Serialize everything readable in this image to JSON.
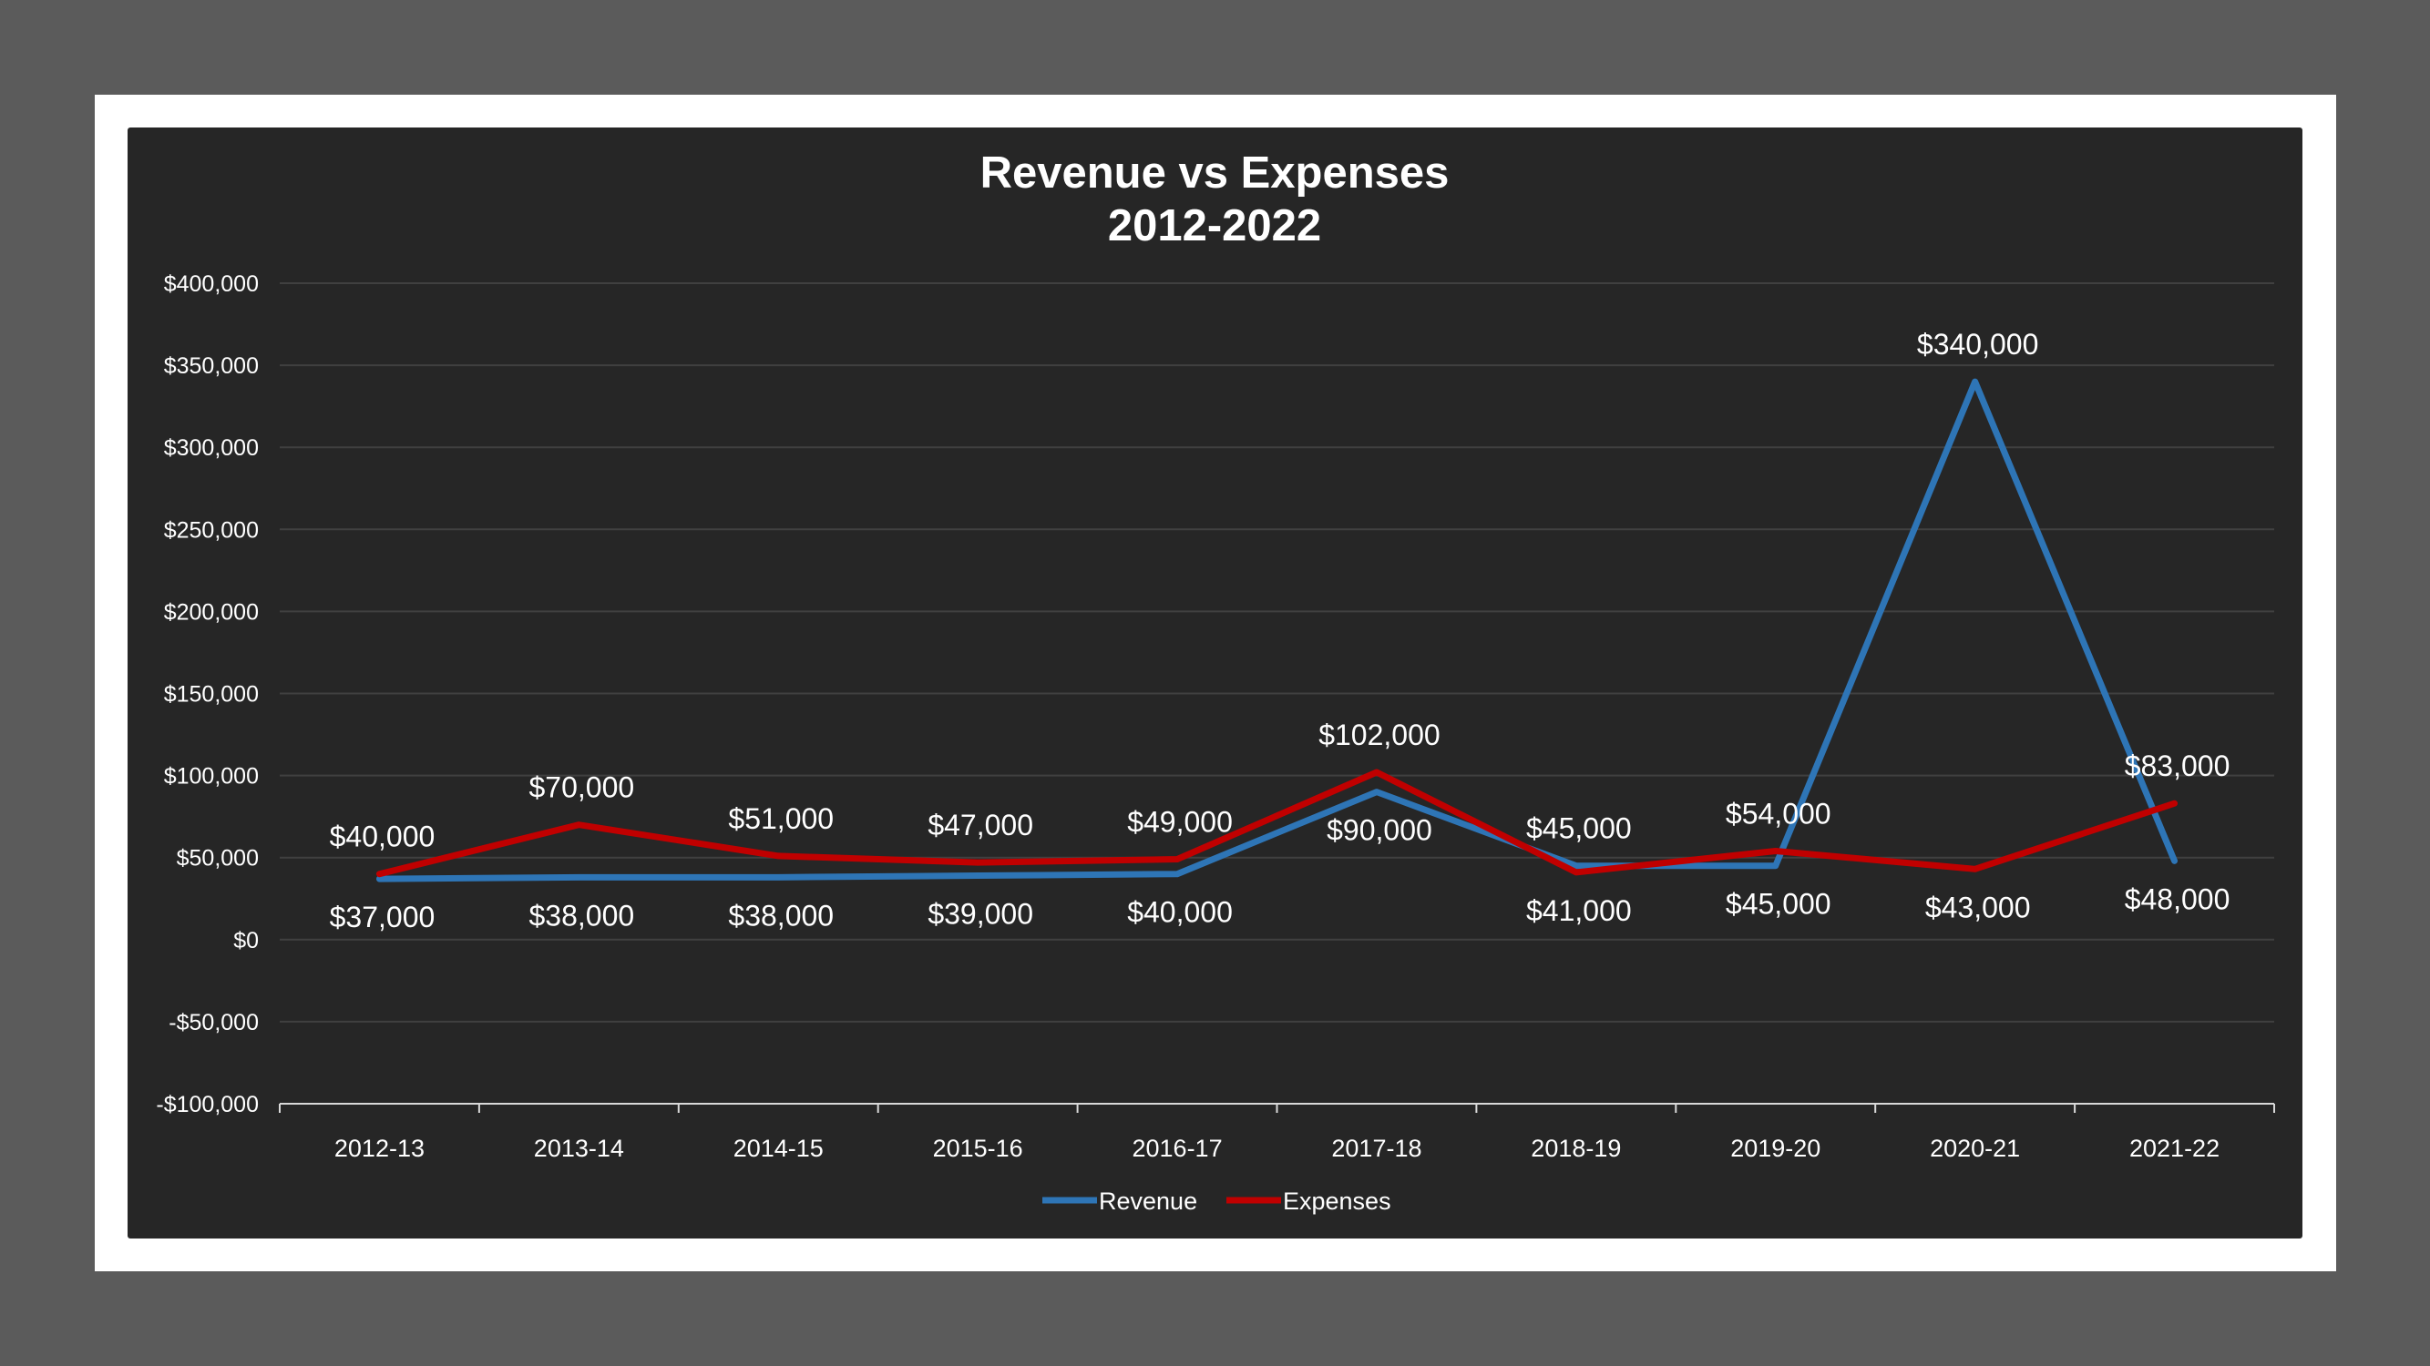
{
  "colors": {
    "page_background": "#5b5b5b",
    "frame": "#ffffff",
    "chart_background": "#262626",
    "gridline": "#404040",
    "text": "#ffffff"
  },
  "chart_data": {
    "type": "line",
    "title": "Revenue vs Expenses",
    "subtitle": "2012-2022",
    "xlabel": "",
    "ylabel": "",
    "ylim": [
      -100000,
      400000
    ],
    "yticks": [
      400000,
      350000,
      300000,
      250000,
      200000,
      150000,
      100000,
      50000,
      0,
      -50000,
      -100000
    ],
    "ytick_labels": [
      "$400,000",
      "$350,000",
      "$300,000",
      "$250,000",
      "$200,000",
      "$150,000",
      "$100,000",
      "$50,000",
      "$0",
      "-$50,000",
      "-$100,000"
    ],
    "grid": true,
    "legend_position": "bottom",
    "categories": [
      "2012-13",
      "2013-14",
      "2014-15",
      "2015-16",
      "2016-17",
      "2017-18",
      "2018-19",
      "2019-20",
      "2020-21",
      "2021-22"
    ],
    "series": [
      {
        "name": "Revenue",
        "color": "#2e75b6",
        "values": [
          37000,
          38000,
          38000,
          39000,
          40000,
          90000,
          45000,
          45000,
          340000,
          48000
        ],
        "labels": [
          "$37,000",
          "$38,000",
          "$38,000",
          "$39,000",
          "$40,000",
          "$90,000",
          "$45,000",
          "$45,000",
          "$340,000",
          "$48,000"
        ]
      },
      {
        "name": "Expenses",
        "color": "#c00000",
        "values": [
          40000,
          70000,
          51000,
          47000,
          49000,
          102000,
          41000,
          54000,
          43000,
          83000
        ],
        "labels": [
          "$40,000",
          "$70,000",
          "$51,000",
          "$47,000",
          "$49,000",
          "$102,000",
          "$41,000",
          "$54,000",
          "$43,000",
          "$83,000"
        ]
      }
    ]
  }
}
